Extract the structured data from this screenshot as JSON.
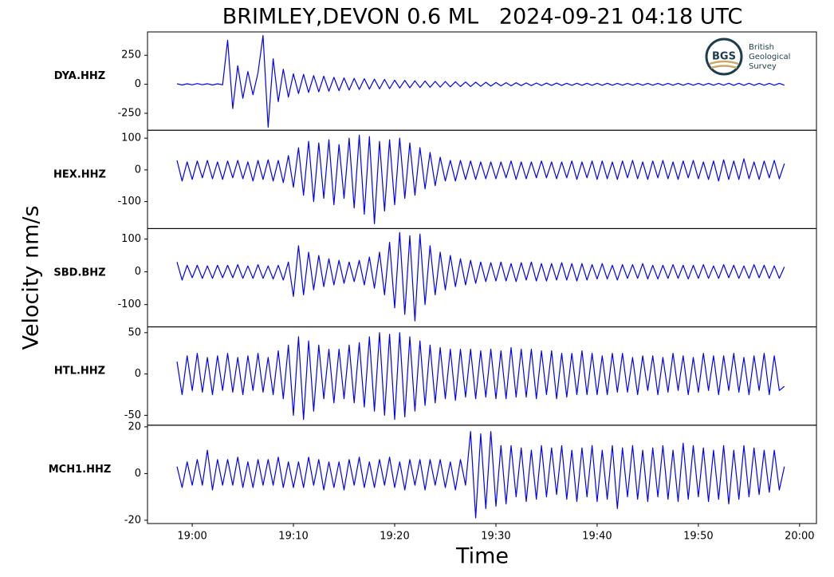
{
  "chart_data": {
    "type": "line",
    "title": "BRIMLEY,DEVON 0.6 ML   2024-09-21 04:18 UTC",
    "xlabel": "Time",
    "ylabel": "Velocity nm/s",
    "logo": {
      "mark": "BGS",
      "lines": [
        "British",
        "Geological",
        "Survey"
      ]
    },
    "xlim": [
      "18:55:35",
      "20:01:40"
    ],
    "xticks": [
      "19:00",
      "19:10",
      "19:20",
      "19:30",
      "19:40",
      "19:50",
      "20:00"
    ],
    "x": [
      "18:58:30",
      "18:59:00",
      "18:59:30",
      "19:00:00",
      "19:00:30",
      "19:01:00",
      "19:01:30",
      "19:02:00",
      "19:02:30",
      "19:03:00",
      "19:03:30",
      "19:04:00",
      "19:04:30",
      "19:05:00",
      "19:05:30",
      "19:06:00",
      "19:06:30",
      "19:07:00",
      "19:07:30",
      "19:08:00",
      "19:08:30",
      "19:09:00",
      "19:09:30",
      "19:10:00",
      "19:10:30",
      "19:11:00",
      "19:11:30",
      "19:12:00",
      "19:12:30",
      "19:13:00",
      "19:13:30",
      "19:14:00",
      "19:14:30",
      "19:15:00",
      "19:15:30",
      "19:16:00",
      "19:16:30",
      "19:17:00",
      "19:17:30",
      "19:18:00",
      "19:18:30",
      "19:19:00",
      "19:19:30",
      "19:20:00",
      "19:20:30",
      "19:21:00",
      "19:21:30",
      "19:22:00",
      "19:22:30",
      "19:23:00",
      "19:23:30",
      "19:24:00",
      "19:24:30",
      "19:25:00",
      "19:25:30",
      "19:26:00",
      "19:26:30",
      "19:27:00",
      "19:27:30",
      "19:28:00",
      "19:28:30",
      "19:29:00",
      "19:29:30",
      "19:30:00",
      "19:30:30",
      "19:31:00",
      "19:31:30",
      "19:32:00",
      "19:32:30",
      "19:33:00",
      "19:33:30",
      "19:34:00",
      "19:34:30",
      "19:35:00",
      "19:35:30",
      "19:36:00",
      "19:36:30",
      "19:37:00",
      "19:37:30",
      "19:38:00",
      "19:38:30",
      "19:39:00",
      "19:39:30",
      "19:40:00",
      "19:40:30",
      "19:41:00",
      "19:41:30",
      "19:42:00",
      "19:42:30",
      "19:43:00",
      "19:43:30",
      "19:44:00",
      "19:44:30",
      "19:45:00",
      "19:45:30",
      "19:46:00",
      "19:46:30",
      "19:47:00",
      "19:47:30",
      "19:48:00",
      "19:48:30",
      "19:49:00",
      "19:49:30",
      "19:50:00",
      "19:50:30",
      "19:51:00",
      "19:51:30",
      "19:52:00",
      "19:52:30",
      "19:53:00",
      "19:53:30",
      "19:54:00",
      "19:54:30",
      "19:55:00",
      "19:55:30",
      "19:56:00",
      "19:56:30",
      "19:57:00",
      "19:57:30",
      "19:58:00",
      "19:58:30"
    ],
    "panels": [
      {
        "name": "DYA.HHZ",
        "color": "#0000ff",
        "ylim": [
          -396,
          451
        ],
        "yticks": [
          -250,
          0,
          250
        ],
        "values": [
          5,
          -6,
          4,
          -5,
          6,
          -4,
          5,
          -6,
          4,
          -5,
          380,
          -210,
          160,
          -120,
          110,
          -90,
          100,
          420,
          -370,
          220,
          -150,
          130,
          -110,
          90,
          -80,
          85,
          -70,
          75,
          -65,
          70,
          -60,
          60,
          -55,
          55,
          -50,
          50,
          -45,
          48,
          -42,
          45,
          -40,
          42,
          -38,
          35,
          -32,
          34,
          -30,
          30,
          -28,
          28,
          -26,
          25,
          -24,
          24,
          -22,
          22,
          -20,
          20,
          -19,
          18,
          -18,
          17,
          -16,
          15,
          -14,
          14,
          -13,
          13,
          -12,
          12,
          -12,
          11,
          -11,
          10,
          -10,
          10,
          -10,
          9,
          -9,
          9,
          -9,
          9,
          -9,
          9,
          -9,
          9,
          -8,
          8,
          -8,
          8,
          -8,
          8,
          -8,
          8,
          -8,
          8,
          -8,
          8,
          -8,
          8,
          -8,
          8,
          -8,
          8,
          -8,
          8,
          -8,
          8,
          -8,
          9,
          -9,
          9,
          -9,
          9,
          -9,
          8,
          -8,
          8,
          -8,
          8,
          -8
        ]
      },
      {
        "name": "HEX.HHZ",
        "color": "#0000ff",
        "ylim": [
          -185,
          125
        ],
        "yticks": [
          -100,
          0,
          100
        ],
        "values": [
          30,
          -35,
          25,
          -30,
          28,
          -25,
          30,
          -28,
          25,
          -30,
          28,
          -25,
          30,
          -28,
          25,
          -35,
          30,
          -30,
          32,
          -35,
          30,
          -40,
          45,
          -55,
          70,
          -80,
          90,
          -100,
          85,
          -90,
          95,
          -110,
          80,
          -90,
          100,
          -120,
          110,
          -140,
          105,
          -170,
          90,
          -130,
          95,
          -110,
          100,
          -90,
          85,
          -80,
          70,
          -60,
          55,
          -50,
          40,
          -35,
          30,
          -35,
          30,
          -30,
          28,
          -30,
          25,
          -28,
          25,
          -28,
          25,
          -25,
          28,
          -30,
          25,
          -28,
          25,
          -25,
          28,
          -25,
          25,
          -28,
          25,
          -25,
          28,
          -30,
          25,
          -25,
          28,
          -30,
          28,
          -28,
          25,
          -30,
          28,
          -25,
          30,
          -28,
          25,
          -30,
          28,
          -25,
          30,
          -28,
          25,
          -30,
          28,
          -25,
          30,
          -28,
          25,
          -30,
          28,
          -35,
          32,
          -30,
          28,
          -30,
          35,
          -28,
          25,
          -30,
          28,
          -25,
          30,
          -28,
          20
        ]
      },
      {
        "name": "SBD.BHZ",
        "color": "#0000ff",
        "ylim": [
          -168,
          132
        ],
        "yticks": [
          -100,
          0,
          100
        ],
        "values": [
          30,
          -25,
          20,
          -18,
          20,
          -20,
          18,
          -20,
          20,
          -18,
          20,
          -18,
          22,
          -20,
          18,
          -20,
          22,
          -20,
          18,
          -22,
          20,
          -25,
          30,
          -75,
          80,
          -70,
          60,
          -55,
          50,
          -45,
          40,
          -40,
          35,
          -35,
          30,
          -30,
          35,
          -40,
          45,
          -50,
          60,
          -70,
          90,
          -110,
          120,
          -130,
          110,
          -150,
          115,
          -100,
          80,
          -70,
          60,
          -55,
          50,
          -45,
          40,
          -40,
          35,
          -35,
          30,
          -30,
          28,
          -28,
          30,
          -28,
          25,
          -30,
          28,
          -25,
          30,
          -28,
          25,
          -28,
          25,
          -25,
          28,
          -25,
          25,
          -28,
          25,
          -25,
          22,
          -22,
          25,
          -22,
          20,
          -25,
          22,
          -20,
          22,
          -20,
          25,
          -22,
          20,
          -22,
          20,
          -20,
          22,
          -20,
          20,
          -22,
          20,
          -20,
          22,
          -20,
          18,
          -20,
          22,
          -18,
          20,
          -20,
          18,
          -20,
          22,
          -18,
          20,
          -20,
          18,
          -20,
          15
        ]
      },
      {
        "name": "HTL.HHZ",
        "color": "#0000ff",
        "ylim": [
          -62,
          57
        ],
        "yticks": [
          -50,
          0,
          50
        ],
        "values": [
          15,
          -25,
          22,
          -20,
          25,
          -22,
          20,
          -25,
          22,
          -20,
          25,
          -22,
          20,
          -25,
          22,
          -20,
          25,
          -22,
          20,
          -25,
          28,
          -30,
          35,
          -50,
          45,
          -55,
          40,
          -45,
          35,
          -30,
          30,
          -35,
          30,
          -30,
          35,
          -35,
          38,
          -40,
          45,
          -45,
          50,
          -50,
          48,
          -55,
          50,
          -52,
          45,
          -45,
          40,
          -38,
          35,
          -35,
          32,
          -30,
          30,
          -32,
          30,
          -28,
          30,
          -30,
          28,
          -28,
          30,
          -30,
          28,
          -30,
          32,
          -28,
          30,
          -28,
          30,
          -30,
          28,
          -25,
          28,
          -30,
          25,
          -28,
          25,
          -25,
          28,
          -25,
          25,
          -25,
          22,
          -25,
          25,
          -22,
          25,
          -22,
          20,
          -25,
          22,
          -20,
          22,
          -25,
          20,
          -22,
          25,
          -20,
          22,
          -25,
          20,
          -22,
          25,
          -20,
          22,
          -25,
          22,
          -20,
          25,
          -22,
          20,
          -25,
          22,
          -20,
          25,
          -25,
          22,
          -20,
          -15
        ]
      },
      {
        "name": "MCH1.HHZ",
        "color": "#0000ff",
        "ylim": [
          -21.4,
          20.7
        ],
        "yticks": [
          -20,
          0,
          20
        ],
        "values": [
          3,
          -6,
          5,
          -5,
          6,
          -5,
          10,
          -7,
          6,
          -5,
          6,
          -5,
          7,
          -6,
          5,
          -6,
          6,
          -5,
          6,
          -5,
          7,
          -6,
          5,
          -6,
          5,
          -6,
          7,
          -5,
          6,
          -7,
          5,
          -6,
          5,
          -7,
          6,
          -5,
          7,
          -6,
          5,
          -6,
          6,
          -5,
          7,
          -6,
          5,
          -7,
          6,
          -5,
          6,
          -7,
          6,
          -5,
          6,
          -6,
          5,
          -7,
          6,
          -5,
          18,
          -19,
          17,
          -15,
          18,
          -14,
          12,
          -13,
          12,
          -10,
          11,
          -12,
          10,
          -11,
          12,
          -10,
          11,
          -9,
          12,
          -11,
          10,
          -12,
          11,
          -10,
          12,
          -12,
          10,
          -11,
          12,
          -15,
          11,
          -10,
          12,
          -11,
          10,
          -12,
          11,
          -10,
          12,
          -11,
          10,
          -12,
          13,
          -11,
          12,
          -10,
          11,
          -12,
          10,
          -11,
          12,
          -13,
          10,
          -11,
          12,
          -10,
          11,
          -9,
          10,
          -8,
          10,
          -7,
          3
        ]
      }
    ]
  }
}
